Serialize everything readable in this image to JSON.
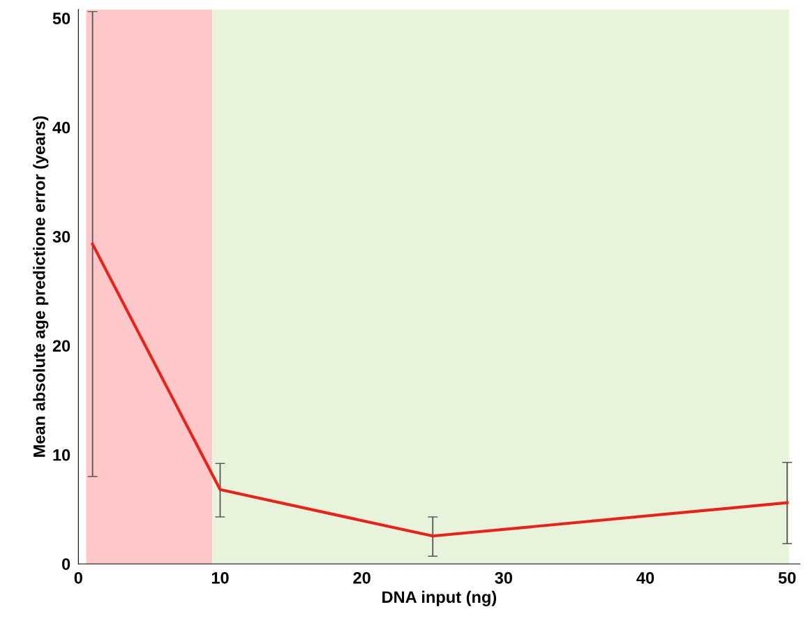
{
  "chart_data": {
    "type": "line",
    "xlabel": "DNA input (ng)",
    "ylabel": "Mean absolute age predictione error (years)",
    "x": [
      1,
      10,
      25,
      50
    ],
    "series": [
      {
        "color": "#e8231b",
        "values": [
          29.3,
          6.8,
          2.55,
          5.6
        ],
        "errors": [
          [
            8.0,
            50.6
          ],
          [
            4.3,
            9.2
          ],
          [
            0.7,
            4.3
          ],
          [
            1.85,
            9.3
          ]
        ]
      }
    ],
    "xlim": [
      0,
      50.9
    ],
    "xticks": [
      0,
      10,
      20,
      30,
      40,
      50
    ],
    "ylim": [
      0,
      50.8
    ],
    "yticks": [
      0,
      10,
      20,
      30,
      40,
      50
    ],
    "bands": [
      {
        "axis": "x",
        "from": 0.55,
        "to": 9.45,
        "color": "#ffc8c8"
      },
      {
        "axis": "x",
        "from": 9.45,
        "to": 50.15,
        "color": "#e8f3dc"
      }
    ],
    "grid": false,
    "legend": false,
    "marker": "none",
    "line_style": "solid"
  }
}
